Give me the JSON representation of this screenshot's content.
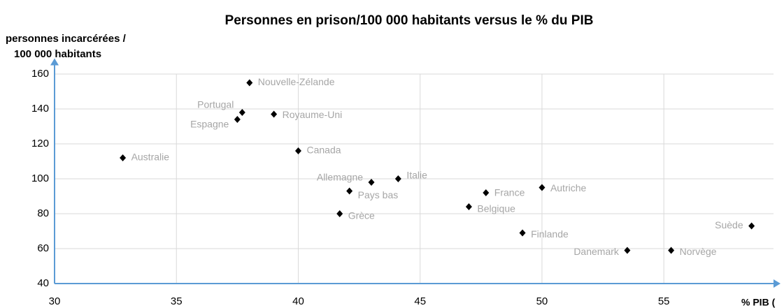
{
  "chart_data": {
    "type": "scatter",
    "title": "Personnes en prison/100 000 habitants versus le % du PIB",
    "ylabel": [
      "personnes incarcérées /",
      "100 000 habitants"
    ],
    "xlabel": "% PIB (",
    "labels": [
      "Australie",
      "Nouvelle-Zélande",
      "Portugal",
      "Espagne",
      "Royaume-Uni",
      "Canada",
      "Allemagne",
      "Italie",
      "Pays bas",
      "Grèce",
      "France",
      "Belgique",
      "Autriche",
      "Finlande",
      "Suède",
      "Danemark",
      "Norvège"
    ],
    "x": [
      32.8,
      38.0,
      37.7,
      37.5,
      39.0,
      40.0,
      43.0,
      44.1,
      42.1,
      41.7,
      47.7,
      47.0,
      50.0,
      49.2,
      58.6,
      53.5,
      55.3
    ],
    "y": [
      112,
      155,
      138,
      134,
      137,
      116,
      98,
      100,
      93,
      80,
      92,
      84,
      95,
      69,
      73,
      59,
      59
    ],
    "color": "#000000",
    "xlim": [
      30,
      59.5
    ],
    "ylim": [
      40,
      165
    ],
    "xticks": [
      30,
      35,
      40,
      45,
      50,
      55
    ],
    "yticks": [
      40,
      60,
      80,
      100,
      120,
      140,
      160
    ],
    "grid": true
  }
}
